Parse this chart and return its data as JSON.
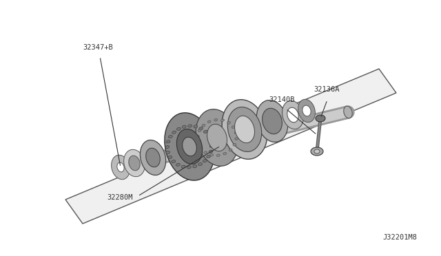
{
  "background_color": "#ffffff",
  "figure_size": [
    6.4,
    3.72
  ],
  "dpi": 100,
  "labels": {
    "top_left": "32347+B",
    "bottom_center": "32280M",
    "right_top": "32136A",
    "right_mid": "32140B",
    "bottom_right": "J32201M8"
  },
  "plate_color": "#d8d8d8",
  "plate_edge_color": "#555555",
  "gear_color": "#888888",
  "shaft_color": "#aaaaaa",
  "line_color": "#333333",
  "text_color": "#333333",
  "text_fontsize": 7.5
}
